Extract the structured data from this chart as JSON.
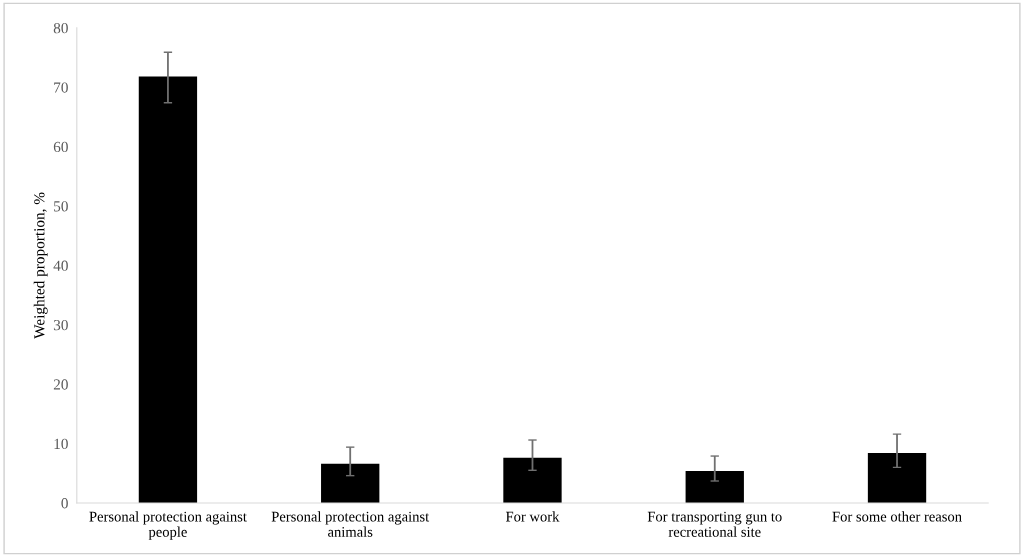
{
  "chart_data": {
    "type": "bar",
    "ylabel": "Weighted proportion, %",
    "categories": [
      "Personal protection against people",
      "Personal protection against animals",
      "For work",
      "For transporting gun to recreational site",
      "For some other reason"
    ],
    "values": [
      71.8,
      6.6,
      7.6,
      5.4,
      8.4
    ],
    "errors": [
      [
        67.4,
        75.9
      ],
      [
        4.6,
        9.4
      ],
      [
        5.5,
        10.6
      ],
      [
        3.7,
        7.9
      ],
      [
        6.0,
        11.6
      ]
    ],
    "color": "#000000",
    "ylim": [
      0,
      80
    ],
    "yticks": [
      0,
      10,
      20,
      30,
      40,
      50,
      60,
      70,
      80
    ],
    "grid": false
  }
}
